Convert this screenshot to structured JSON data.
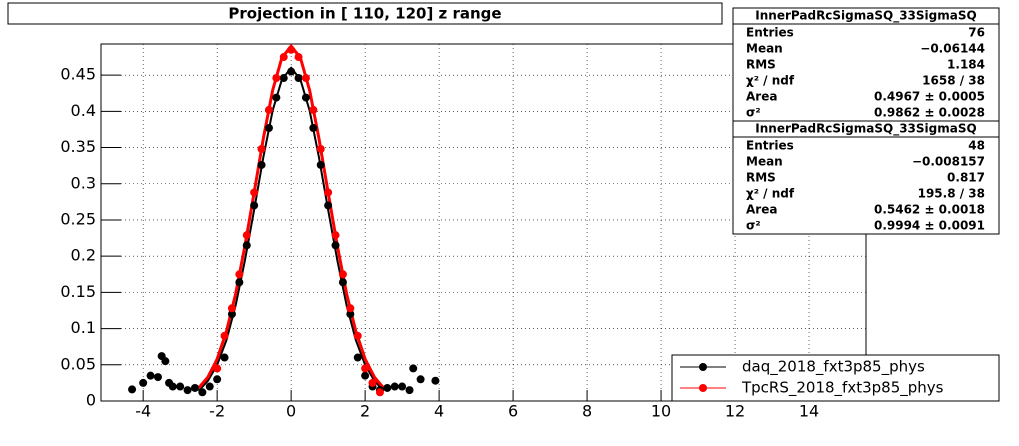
{
  "chart_data": {
    "type": "scatter",
    "title": "Projection in [ 110, 120] z range",
    "xlim": [
      -5.14,
      15.54
    ],
    "ylim": [
      0,
      0.493
    ],
    "xticks": [
      -4,
      -2,
      0,
      2,
      4,
      6,
      8,
      10,
      12,
      14
    ],
    "yticks": [
      0,
      0.05,
      0.1,
      0.15,
      0.2,
      0.25,
      0.3,
      0.35,
      0.4,
      0.45
    ],
    "grid": true,
    "legend": "bottom-right",
    "series": [
      {
        "name": "daq_2018_fxt3p85_phys",
        "color": "#000000",
        "x": [
          -4.3,
          -4.0,
          -3.8,
          -3.6,
          -3.5,
          -3.4,
          -3.3,
          -3.2,
          -3.0,
          -2.8,
          -2.6,
          -2.4,
          -2.2,
          -2.0,
          -1.8,
          -1.6,
          -1.4,
          -1.2,
          -1.0,
          -0.8,
          -0.6,
          -0.4,
          -0.2,
          0,
          0.2,
          0.4,
          0.6,
          0.8,
          1.0,
          1.2,
          1.4,
          1.6,
          1.8,
          2.0,
          2.2,
          2.4,
          2.6,
          2.8,
          3.0,
          3.2,
          3.3,
          3.5,
          3.9
        ],
        "values": [
          0.016,
          0.025,
          0.035,
          0.033,
          0.062,
          0.055,
          0.025,
          0.02,
          0.02,
          0.015,
          0.018,
          0.012,
          0.02,
          0.03,
          0.06,
          0.12,
          0.164,
          0.215,
          0.27,
          0.326,
          0.377,
          0.419,
          0.446,
          0.455,
          0.446,
          0.419,
          0.377,
          0.326,
          0.27,
          0.215,
          0.164,
          0.12,
          0.06,
          0.035,
          0.02,
          0.015,
          0.018,
          0.02,
          0.02,
          0.015,
          0.045,
          0.03,
          0.028
        ]
      },
      {
        "name": "TpcRS_2018_fxt3p85_phys",
        "color": "#ff0000",
        "x": [
          -2.0,
          -1.8,
          -1.6,
          -1.4,
          -1.2,
          -1.0,
          -0.8,
          -0.6,
          -0.4,
          -0.2,
          0,
          0.2,
          0.4,
          0.6,
          0.8,
          1.0,
          1.2,
          1.4,
          1.6,
          1.8,
          2.0,
          2.2,
          2.4
        ],
        "values": [
          0.045,
          0.09,
          0.128,
          0.175,
          0.229,
          0.288,
          0.348,
          0.402,
          0.446,
          0.475,
          0.485,
          0.475,
          0.446,
          0.402,
          0.348,
          0.288,
          0.229,
          0.175,
          0.128,
          0.09,
          0.045,
          0.025,
          0.012
        ]
      }
    ],
    "fits": [
      {
        "color": "#000000",
        "x": [
          -2.5,
          -2.25,
          -2.0,
          -1.75,
          -1.5,
          -1.25,
          -1.0,
          -0.75,
          -0.5,
          -0.25,
          0,
          0.25,
          0.5,
          0.75,
          1.0,
          1.25,
          1.5,
          1.75,
          2.0,
          2.25,
          2.5
        ],
        "values": [
          0.014,
          0.028,
          0.05,
          0.084,
          0.132,
          0.194,
          0.264,
          0.337,
          0.401,
          0.444,
          0.46,
          0.444,
          0.401,
          0.337,
          0.264,
          0.194,
          0.132,
          0.084,
          0.05,
          0.028,
          0.014
        ]
      },
      {
        "color": "#ff0000",
        "x": [
          -2.5,
          -2.25,
          -2.0,
          -1.75,
          -1.5,
          -1.25,
          -1.0,
          -0.75,
          -0.5,
          -0.25,
          0,
          0.25,
          0.5,
          0.75,
          1.0,
          1.25,
          1.5,
          1.75,
          2.0,
          2.25,
          2.5
        ],
        "values": [
          0.018,
          0.033,
          0.058,
          0.096,
          0.148,
          0.214,
          0.288,
          0.363,
          0.429,
          0.474,
          0.49,
          0.474,
          0.429,
          0.363,
          0.288,
          0.214,
          0.148,
          0.096,
          0.058,
          0.033,
          0.018
        ]
      }
    ],
    "stats": [
      {
        "title": "InnerPadRcSigmaSQ_33SigmaSQ",
        "rows": [
          [
            "Entries",
            "76"
          ],
          [
            "Mean",
            "−0.06144"
          ],
          [
            "RMS",
            "1.184"
          ],
          [
            "χ² / ndf",
            "1658 / 38"
          ],
          [
            "Area",
            "0.4967 ± 0.0005"
          ],
          [
            "σ²",
            "0.9862 ± 0.0028"
          ]
        ]
      },
      {
        "title": "InnerPadRcSigmaSQ_33SigmaSQ",
        "rows": [
          [
            "Entries",
            "48"
          ],
          [
            "Mean",
            "−0.008157"
          ],
          [
            "RMS",
            "0.817"
          ],
          [
            "χ² / ndf",
            "195.8 / 38"
          ],
          [
            "Area",
            "0.5462 ± 0.0018"
          ],
          [
            "σ²",
            "0.9994 ± 0.0091"
          ]
        ]
      }
    ]
  }
}
